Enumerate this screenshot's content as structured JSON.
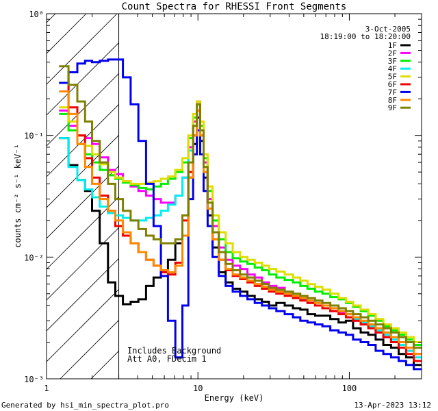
{
  "chart_data": {
    "type": "line",
    "title": "Count Spectra for RHESSI Front Segments",
    "xlabel": "Energy (keV)",
    "ylabel": "counts cm⁻² s⁻¹ keV⁻¹",
    "xscale": "log",
    "yscale": "log",
    "xlim": [
      1,
      300
    ],
    "ylim": [
      0.001,
      1
    ],
    "x_ticks": [
      {
        "value": 1,
        "label": "1"
      },
      {
        "value": 10,
        "label": "10"
      },
      {
        "value": 100,
        "label": "100"
      }
    ],
    "y_ticks": [
      {
        "value": 1,
        "label": "10⁰"
      },
      {
        "value": 0.1,
        "label": "10⁻¹"
      },
      {
        "value": 0.01,
        "label": "10⁻²"
      },
      {
        "value": 0.001,
        "label": "10⁻³"
      }
    ],
    "legend": {
      "location": "top-right",
      "date": "3-Oct-2005",
      "time_range": "18:19:00 to 18:20:00"
    },
    "annotation_lines": [
      "Includes Background",
      "Att A0, FDecim 1"
    ],
    "shaded_region": {
      "x_start": 1,
      "x_end": 3,
      "style": "diagonal hatch"
    },
    "energies_keV": [
      1.3,
      1.5,
      1.7,
      1.9,
      2.1,
      2.4,
      2.7,
      3.0,
      3.4,
      3.8,
      4.3,
      4.8,
      5.4,
      6.0,
      6.7,
      7.5,
      8.3,
      9.0,
      9.6,
      10.1,
      10.6,
      11.2,
      12.0,
      13,
      14.5,
      16,
      18,
      20,
      22.5,
      25,
      28,
      31,
      35,
      40,
      45,
      50,
      56,
      63,
      70,
      80,
      90,
      100,
      112,
      126,
      141,
      158,
      178,
      200,
      224,
      251,
      282
    ],
    "series": [
      {
        "name": "1F",
        "color": "#000000",
        "values": [
          0.095,
          0.057,
          0.043,
          0.035,
          0.024,
          0.013,
          0.0062,
          0.0048,
          0.0041,
          0.0043,
          0.0045,
          0.0058,
          0.0068,
          0.0078,
          0.0095,
          0.013,
          0.022,
          0.045,
          0.085,
          0.14,
          0.09,
          0.045,
          0.022,
          0.012,
          0.0075,
          0.0062,
          0.0055,
          0.0052,
          0.0048,
          0.0045,
          0.0043,
          0.004,
          0.0042,
          0.004,
          0.0038,
          0.0037,
          0.0034,
          0.0033,
          0.0033,
          0.0031,
          0.0029,
          0.003,
          0.0026,
          0.0024,
          0.0023,
          0.0021,
          0.0019,
          0.0018,
          0.0016,
          0.0015,
          0.0013
        ]
      },
      {
        "name": "2F",
        "color": "#ff00ff",
        "values": [
          0.16,
          0.12,
          0.1,
          0.095,
          0.085,
          0.066,
          0.052,
          0.048,
          0.042,
          0.038,
          0.035,
          0.032,
          0.03,
          0.028,
          0.028,
          0.032,
          0.045,
          0.08,
          0.13,
          0.19,
          0.12,
          0.06,
          0.03,
          0.018,
          0.012,
          0.0095,
          0.0085,
          0.008,
          0.0072,
          0.0068,
          0.0062,
          0.0058,
          0.0056,
          0.005,
          0.0047,
          0.0045,
          0.0042,
          0.004,
          0.0038,
          0.0036,
          0.0035,
          0.0034,
          0.003,
          0.0028,
          0.0027,
          0.0024,
          0.0022,
          0.002,
          0.0019,
          0.0017,
          0.0016
        ]
      },
      {
        "name": "3F",
        "color": "#00ee00",
        "values": [
          0.15,
          0.11,
          0.085,
          0.07,
          0.06,
          0.052,
          0.047,
          0.044,
          0.041,
          0.039,
          0.037,
          0.036,
          0.038,
          0.04,
          0.044,
          0.05,
          0.06,
          0.095,
          0.14,
          0.18,
          0.12,
          0.065,
          0.035,
          0.02,
          0.014,
          0.011,
          0.0098,
          0.0092,
          0.0088,
          0.0082,
          0.0078,
          0.0072,
          0.0068,
          0.0065,
          0.0062,
          0.0058,
          0.0055,
          0.0052,
          0.005,
          0.0047,
          0.0045,
          0.0042,
          0.0039,
          0.0036,
          0.0033,
          0.003,
          0.0027,
          0.0025,
          0.0023,
          0.0021,
          0.0019
        ]
      },
      {
        "name": "4F",
        "color": "#00eeee",
        "values": [
          0.095,
          0.055,
          0.043,
          0.036,
          0.031,
          0.026,
          0.023,
          0.022,
          0.021,
          0.02,
          0.02,
          0.021,
          0.022,
          0.024,
          0.027,
          0.032,
          0.045,
          0.075,
          0.12,
          0.16,
          0.1,
          0.05,
          0.025,
          0.014,
          0.0095,
          0.0078,
          0.0072,
          0.0068,
          0.0064,
          0.006,
          0.0056,
          0.0053,
          0.0052,
          0.005,
          0.0048,
          0.0046,
          0.0044,
          0.0042,
          0.004,
          0.0038,
          0.0036,
          0.0034,
          0.0031,
          0.0029,
          0.0027,
          0.0025,
          0.0023,
          0.0021,
          0.0019,
          0.0017,
          0.0015
        ]
      },
      {
        "name": "5F",
        "color": "#dddd00",
        "values": [
          0.17,
          0.13,
          0.1,
          0.082,
          0.07,
          0.058,
          0.05,
          0.045,
          0.042,
          0.04,
          0.04,
          0.041,
          0.042,
          0.044,
          0.046,
          0.052,
          0.065,
          0.1,
          0.15,
          0.19,
          0.13,
          0.07,
          0.038,
          0.022,
          0.016,
          0.013,
          0.011,
          0.01,
          0.0095,
          0.009,
          0.0085,
          0.008,
          0.0076,
          0.0072,
          0.0068,
          0.0064,
          0.006,
          0.0057,
          0.0054,
          0.005,
          0.0046,
          0.0043,
          0.004,
          0.0037,
          0.0034,
          0.0031,
          0.0028,
          0.0026,
          0.0024,
          0.0022,
          0.002
        ]
      },
      {
        "name": "6F",
        "color": "#ee0000",
        "values": [
          0.27,
          0.17,
          0.1,
          0.065,
          0.045,
          0.032,
          0.024,
          0.018,
          0.015,
          0.013,
          0.011,
          0.0095,
          0.0085,
          0.0075,
          0.0072,
          0.009,
          0.02,
          0.05,
          0.1,
          0.16,
          0.1,
          0.05,
          0.025,
          0.014,
          0.0095,
          0.0078,
          0.007,
          0.0066,
          0.0062,
          0.0058,
          0.0055,
          0.0052,
          0.005,
          0.0048,
          0.0046,
          0.0044,
          0.0042,
          0.004,
          0.0038,
          0.0036,
          0.0034,
          0.0032,
          0.003,
          0.0028,
          0.0026,
          0.0024,
          0.0022,
          0.002,
          0.0018,
          0.0016,
          0.0014
        ]
      },
      {
        "name": "7F",
        "color": "#0000ee",
        "values": [
          0.27,
          0.33,
          0.39,
          0.41,
          0.4,
          0.41,
          0.42,
          0.42,
          0.3,
          0.18,
          0.09,
          0.04,
          0.018,
          0.007,
          0.003,
          0.0015,
          0.004,
          0.03,
          0.07,
          0.11,
          0.07,
          0.035,
          0.018,
          0.01,
          0.007,
          0.0058,
          0.0052,
          0.0048,
          0.0045,
          0.0042,
          0.004,
          0.0038,
          0.0036,
          0.0034,
          0.0032,
          0.003,
          0.0029,
          0.0028,
          0.0027,
          0.0025,
          0.0024,
          0.0023,
          0.0021,
          0.002,
          0.0019,
          0.0017,
          0.0016,
          0.0015,
          0.0014,
          0.0013,
          0.0012
        ]
      },
      {
        "name": "8F",
        "color": "#ff8800",
        "values": [
          0.23,
          0.15,
          0.085,
          0.055,
          0.04,
          0.03,
          0.024,
          0.02,
          0.016,
          0.013,
          0.011,
          0.0095,
          0.0085,
          0.0078,
          0.0075,
          0.0085,
          0.015,
          0.045,
          0.1,
          0.16,
          0.1,
          0.05,
          0.025,
          0.014,
          0.0095,
          0.008,
          0.0072,
          0.0068,
          0.0064,
          0.006,
          0.0057,
          0.0054,
          0.0052,
          0.005,
          0.0048,
          0.0046,
          0.0044,
          0.0042,
          0.004,
          0.0038,
          0.0036,
          0.0034,
          0.0032,
          0.003,
          0.0028,
          0.0026,
          0.0024,
          0.0022,
          0.002,
          0.0018,
          0.0016
        ]
      },
      {
        "name": "9F",
        "color": "#808000",
        "values": [
          0.37,
          0.26,
          0.19,
          0.13,
          0.09,
          0.06,
          0.04,
          0.03,
          0.024,
          0.02,
          0.017,
          0.015,
          0.014,
          0.013,
          0.013,
          0.014,
          0.022,
          0.06,
          0.12,
          0.18,
          0.11,
          0.055,
          0.028,
          0.016,
          0.011,
          0.0088,
          0.0078,
          0.0072,
          0.0068,
          0.0064,
          0.006,
          0.0056,
          0.0054,
          0.0052,
          0.005,
          0.0048,
          0.0046,
          0.0044,
          0.0042,
          0.004,
          0.0038,
          0.0036,
          0.0034,
          0.0032,
          0.003,
          0.0028,
          0.0026,
          0.0024,
          0.0022,
          0.002,
          0.0018
        ]
      }
    ]
  },
  "footer": {
    "generated_by": "Generated by hsi_min_spectra_plot.pro",
    "timestamp": "13-Apr-2023 13:12"
  }
}
